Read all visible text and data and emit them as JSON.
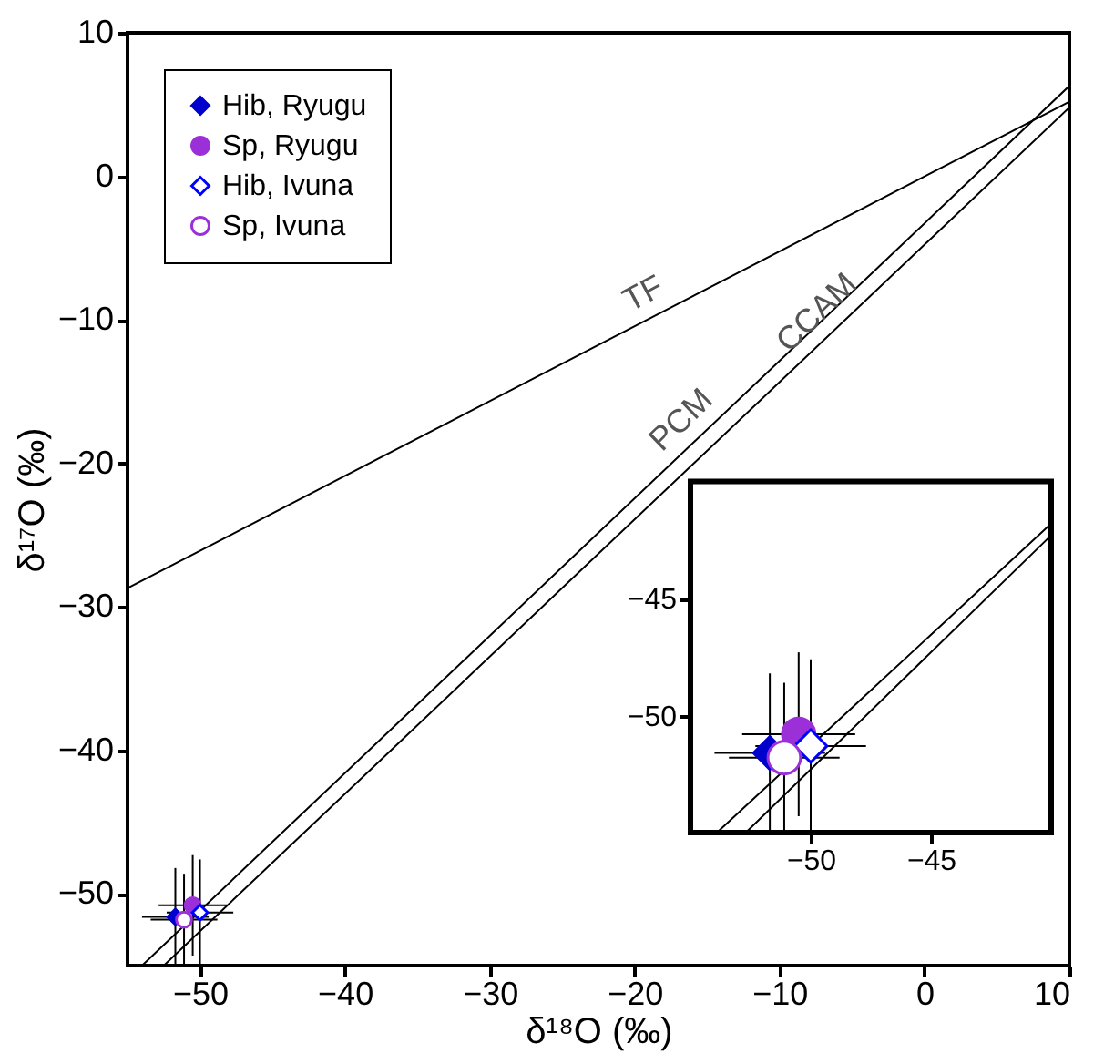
{
  "chart_data": [
    {
      "type": "scatter",
      "xlabel": "δ¹⁸O (‰)",
      "ylabel": "δ¹⁷O (‰)",
      "xlim": [
        -55,
        10
      ],
      "ylim": [
        -55,
        10
      ],
      "xticks": [
        -50,
        -40,
        -30,
        -20,
        -10,
        0,
        10
      ],
      "yticks": [
        -50,
        -40,
        -30,
        -20,
        -10,
        0,
        10
      ],
      "grid": false,
      "legend": "top left",
      "series": [
        {
          "name": "Hib, Ryugu",
          "color": "#0000cc",
          "marker": "diamond",
          "x": [
            -51.7
          ],
          "values": [
            -51.6
          ],
          "errors": [
            3.4
          ],
          "xerrors": [
            2.3
          ]
        },
        {
          "name": "Sp, Ryugu",
          "color": "#9b30d9",
          "marker": "circle",
          "x": [
            -50.5
          ],
          "values": [
            -50.8
          ],
          "errors": [
            3.5
          ],
          "xerrors": [
            2.35
          ]
        },
        {
          "name": "Hib, Ivuna",
          "color": "#0000ff",
          "marker": "diamond-open",
          "x": [
            -50.0
          ],
          "values": [
            -51.3
          ],
          "errors": [
            3.7
          ],
          "xerrors": [
            2.3
          ]
        },
        {
          "name": "Sp, Ivuna",
          "color": "#9b30d9",
          "marker": "circle-open",
          "x": [
            -51.1
          ],
          "values": [
            -51.8
          ],
          "errors": [
            3.2
          ],
          "xerrors": [
            2.3
          ]
        },
        {
          "type": "line",
          "color": "#000000",
          "x": [
            -55,
            10
          ],
          "values": [
            -28.7,
            5.2
          ]
        },
        {
          "type": "line",
          "color": "#000000",
          "x": [
            -54,
            10
          ],
          "values": [
            -55,
            6.3
          ]
        },
        {
          "type": "line",
          "color": "#000000",
          "x": [
            -52.5,
            10
          ],
          "values": [
            -55,
            4.8
          ]
        }
      ],
      "annotations": [
        "TF",
        "PCM",
        "CCAM"
      ]
    },
    {
      "type": "scatter",
      "xlim": [
        -55,
        -40
      ],
      "ylim": [
        -55,
        -40
      ],
      "xticks": [
        -50,
        -45
      ],
      "yticks": [
        -50,
        -45
      ],
      "grid": false,
      "series": [
        {
          "color": "#0000cc",
          "marker": "diamond",
          "x": [
            -51.7
          ],
          "values": [
            -51.6
          ],
          "errors": [
            3.4
          ],
          "xerrors": [
            2.3
          ]
        },
        {
          "color": "#9b30d9",
          "marker": "circle",
          "x": [
            -50.5
          ],
          "values": [
            -50.8
          ],
          "errors": [
            3.5
          ],
          "xerrors": [
            2.35
          ]
        },
        {
          "color": "#0000ff",
          "marker": "diamond-open",
          "x": [
            -50.0
          ],
          "values": [
            -51.3
          ],
          "errors": [
            3.7
          ],
          "xerrors": [
            2.3
          ]
        },
        {
          "color": "#9b30d9",
          "marker": "circle-open",
          "x": [
            -51.1
          ],
          "values": [
            -51.8
          ],
          "errors": [
            3.2
          ],
          "xerrors": [
            2.3
          ]
        },
        {
          "type": "line",
          "color": "#000000",
          "x": [
            -53.9,
            -40
          ],
          "values": [
            -55,
            -41.8
          ]
        },
        {
          "type": "line",
          "color": "#000000",
          "x": [
            -52.7,
            -40
          ],
          "values": [
            -55,
            -42.3
          ]
        }
      ]
    }
  ]
}
